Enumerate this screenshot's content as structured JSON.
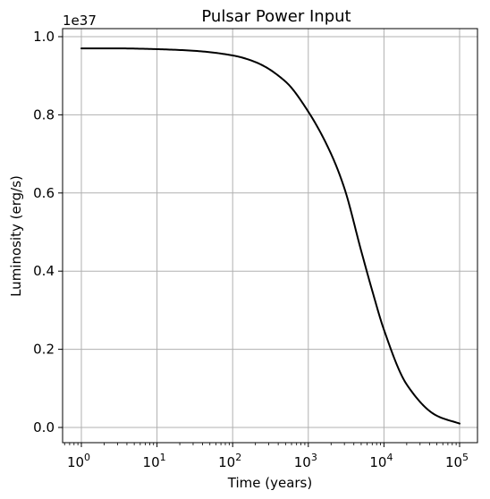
{
  "chart_data": {
    "type": "line",
    "title": "Pulsar Power Input",
    "xlabel": "Time (years)",
    "ylabel": "Luminosity (erg/s)",
    "offset_label": "1e37",
    "x_scale": "log",
    "x_range_years": [
      1,
      100000
    ],
    "y_range": [
      0.0,
      1.0
    ],
    "x_ticks": [
      {
        "value": 1,
        "base": "10",
        "exp": "0"
      },
      {
        "value": 10,
        "base": "10",
        "exp": "1"
      },
      {
        "value": 100,
        "base": "10",
        "exp": "2"
      },
      {
        "value": 1000,
        "base": "10",
        "exp": "3"
      },
      {
        "value": 10000,
        "base": "10",
        "exp": "4"
      },
      {
        "value": 100000,
        "base": "10",
        "exp": "5"
      }
    ],
    "y_ticks": [
      {
        "value": 0.0,
        "label": "0.0"
      },
      {
        "value": 0.2,
        "label": "0.2"
      },
      {
        "value": 0.4,
        "label": "0.4"
      },
      {
        "value": 0.6,
        "label": "0.6"
      },
      {
        "value": 0.8,
        "label": "0.8"
      },
      {
        "value": 1.0,
        "label": "1.0"
      }
    ],
    "grid": true,
    "line_color": "#000000",
    "series": [
      {
        "x": [
          1,
          3,
          10,
          30,
          100,
          200,
          500,
          1000,
          2000,
          3000,
          5000,
          7000,
          10000,
          20000,
          50000,
          100000
        ],
        "y": [
          0.97,
          0.97,
          0.968,
          0.964,
          0.952,
          0.935,
          0.885,
          0.808,
          0.7,
          0.612,
          0.452,
          0.35,
          0.25,
          0.11,
          0.03,
          0.01
        ]
      }
    ]
  }
}
